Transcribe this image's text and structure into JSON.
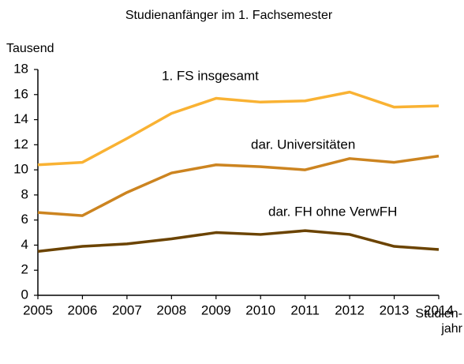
{
  "chart_data": {
    "type": "line",
    "title": "Studienanfänger im 1. Fachsemester",
    "y_label": "Tausend",
    "x_label": "Studien-\njahr",
    "categories": [
      "2005",
      "2006",
      "2007",
      "2008",
      "2009",
      "2010",
      "2011",
      "2012",
      "2013",
      "2014"
    ],
    "series": [
      {
        "name": "1. FS insgesamt",
        "color": "#f9b233",
        "values": [
          10.4,
          10.6,
          12.5,
          14.5,
          15.7,
          15.4,
          15.5,
          16.2,
          15.0,
          15.1
        ]
      },
      {
        "name": "dar. Universitäten",
        "color": "#cc8420",
        "values": [
          6.6,
          6.35,
          8.2,
          9.75,
          10.4,
          10.25,
          10.0,
          10.9,
          10.6,
          11.1
        ]
      },
      {
        "name": "dar. FH ohne VerwFH",
        "color": "#6b4300",
        "values": [
          3.5,
          3.9,
          4.1,
          4.5,
          5.0,
          4.85,
          5.15,
          4.85,
          3.9,
          3.65
        ]
      }
    ],
    "ylim": [
      0,
      18
    ],
    "yticks": [
      0,
      2,
      4,
      6,
      8,
      10,
      12,
      14,
      16,
      18
    ],
    "grid": false
  }
}
